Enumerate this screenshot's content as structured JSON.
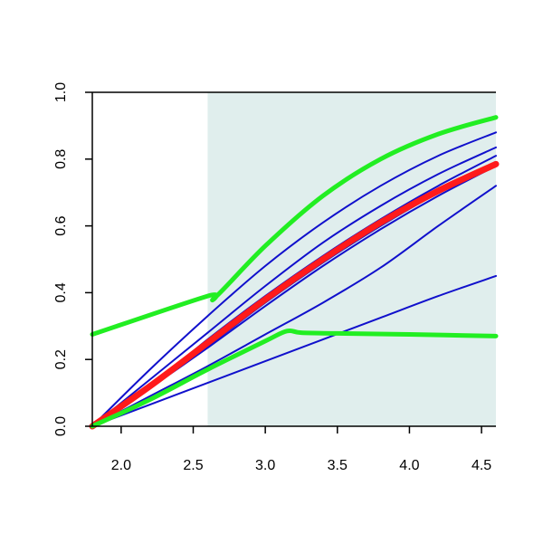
{
  "chart_data": {
    "type": "line",
    "title": "",
    "xlabel": "",
    "ylabel": "",
    "xlim": [
      1.8,
      4.6
    ],
    "ylim": [
      0.0,
      1.0
    ],
    "x_ticks": [
      2.0,
      2.5,
      3.0,
      3.5,
      4.0,
      4.5
    ],
    "y_ticks": [
      0.0,
      0.2,
      0.4,
      0.6,
      0.8,
      1.0
    ],
    "x_tick_labels": [
      "2.0",
      "2.5",
      "3.0",
      "3.5",
      "4.0",
      "4.5"
    ],
    "y_tick_labels": [
      "0.0",
      "0.2",
      "0.4",
      "0.6",
      "0.8",
      "1.0"
    ],
    "shaded_region": {
      "x_range": [
        2.6,
        4.6
      ],
      "color": "#e0eeed"
    },
    "grid": false,
    "colors": {
      "blue": "#1010cc",
      "red": "#ff1a1a",
      "green": "#22ee22"
    },
    "series": [
      {
        "color": "#1010cc",
        "width": "thin",
        "x": [
          1.8,
          2.2,
          2.6,
          3.0,
          3.4,
          3.8,
          4.2,
          4.6
        ],
        "y": [
          0.0,
          0.065,
          0.13,
          0.195,
          0.26,
          0.325,
          0.39,
          0.45
        ]
      },
      {
        "color": "#1010cc",
        "width": "thin",
        "x": [
          1.8,
          2.2,
          2.6,
          3.0,
          3.4,
          3.8,
          4.2,
          4.6
        ],
        "y": [
          0.0,
          0.09,
          0.18,
          0.275,
          0.37,
          0.475,
          0.6,
          0.72
        ]
      },
      {
        "color": "#1010cc",
        "width": "thin",
        "x": [
          1.8,
          2.2,
          2.6,
          3.0,
          3.4,
          3.8,
          4.2,
          4.6
        ],
        "y": [
          0.0,
          0.12,
          0.26,
          0.39,
          0.51,
          0.62,
          0.72,
          0.81
        ]
      },
      {
        "color": "#1010cc",
        "width": "thin",
        "x": [
          1.8,
          2.2,
          2.6,
          3.0,
          3.4,
          3.8,
          4.2,
          4.6
        ],
        "y": [
          0.0,
          0.14,
          0.28,
          0.42,
          0.55,
          0.66,
          0.755,
          0.835
        ]
      },
      {
        "color": "#1010cc",
        "width": "thin",
        "x": [
          1.8,
          2.2,
          2.6,
          3.0,
          3.4,
          3.8,
          4.2,
          4.6
        ],
        "y": [
          0.0,
          0.17,
          0.33,
          0.48,
          0.61,
          0.72,
          0.81,
          0.88
        ]
      },
      {
        "color": "#1010cc",
        "width": "thin",
        "x": [
          1.8,
          2.2,
          2.6,
          3.0,
          3.4,
          3.8,
          4.2,
          4.6
        ],
        "y": [
          0.0,
          0.12,
          0.24,
          0.37,
          0.49,
          0.6,
          0.7,
          0.79
        ]
      },
      {
        "color": "#1010cc",
        "width": "thin",
        "x": [
          1.8,
          2.2,
          2.6,
          3.0,
          3.4,
          3.8,
          4.2,
          4.6
        ],
        "y": [
          0.0,
          0.115,
          0.235,
          0.36,
          0.48,
          0.59,
          0.69,
          0.78
        ]
      },
      {
        "color": "#ff1a1a",
        "width": "thick",
        "x": [
          1.8,
          2.2,
          2.6,
          3.0,
          3.4,
          3.8,
          4.2,
          4.6
        ],
        "y": [
          0.0,
          0.12,
          0.25,
          0.38,
          0.5,
          0.61,
          0.705,
          0.785
        ]
      },
      {
        "color": "#22ee22",
        "width": "thick",
        "x": [
          1.8,
          2.6,
          2.65,
          3.0,
          3.4,
          3.8,
          4.2,
          4.6
        ],
        "y": [
          0.275,
          0.39,
          0.385,
          0.54,
          0.69,
          0.8,
          0.875,
          0.925
        ]
      },
      {
        "color": "#22ee22",
        "width": "thick",
        "x": [
          1.8,
          2.2,
          2.6,
          3.0,
          3.15,
          3.25,
          3.5,
          4.0,
          4.6
        ],
        "y": [
          0.0,
          0.08,
          0.17,
          0.255,
          0.285,
          0.28,
          0.278,
          0.275,
          0.27
        ]
      }
    ]
  }
}
